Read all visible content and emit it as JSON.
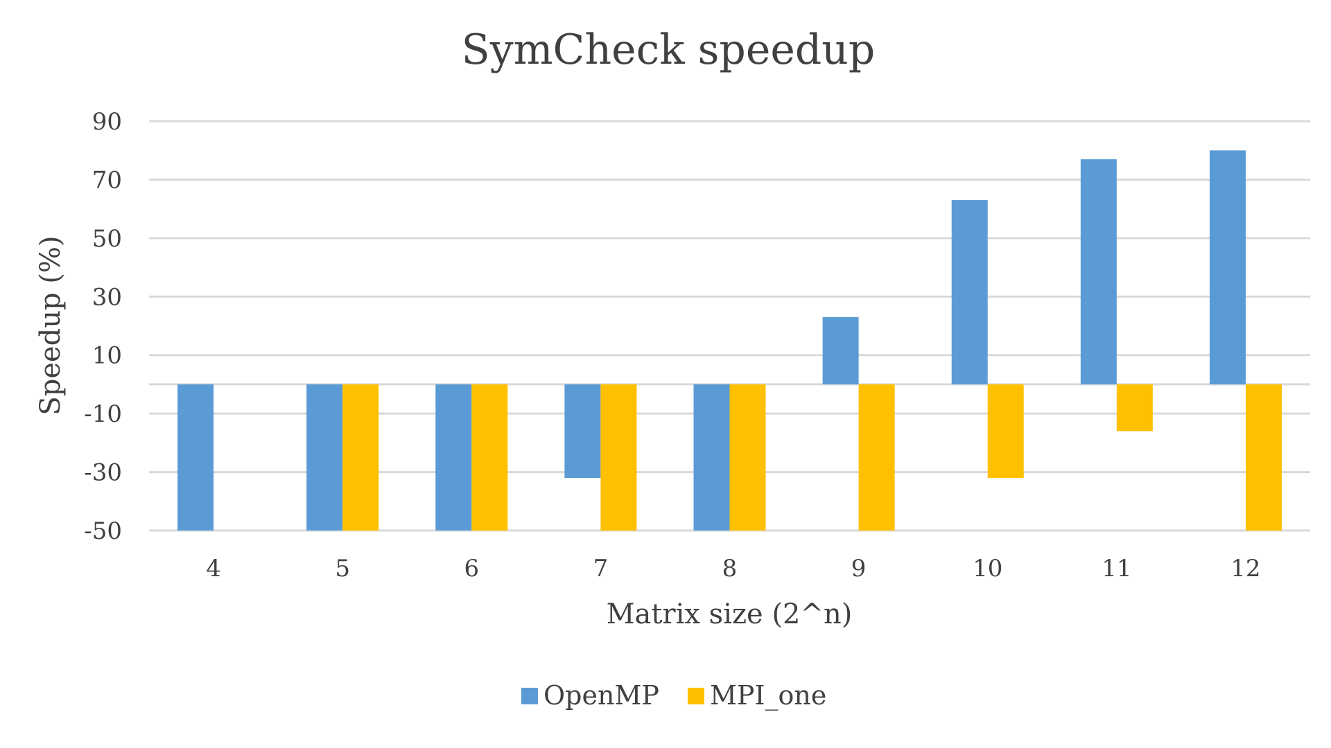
{
  "chart_data": {
    "type": "bar",
    "title": "SymCheck speedup",
    "xlabel": "Matrix size (2^n)",
    "ylabel": "Speedup (%)",
    "categories": [
      "4",
      "5",
      "6",
      "7",
      "8",
      "9",
      "10",
      "11",
      "12"
    ],
    "ylim": [
      -50,
      90
    ],
    "yticks": [
      90,
      70,
      50,
      30,
      10,
      -10,
      -30,
      -50
    ],
    "grid": true,
    "legend_position": "bottom",
    "series": [
      {
        "name": "OpenMP",
        "color": "#5b9bd5",
        "values": [
          -50,
          -50,
          -50,
          -32,
          -50,
          23,
          63,
          77,
          80
        ]
      },
      {
        "name": "MPI_one",
        "color": "#ffc000",
        "values": [
          null,
          -50,
          -50,
          -50,
          -50,
          -50,
          -32,
          -16,
          -50
        ]
      }
    ]
  }
}
